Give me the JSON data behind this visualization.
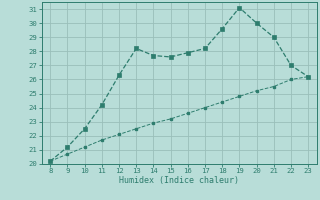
{
  "x": [
    8,
    9,
    10,
    11,
    12,
    13,
    14,
    15,
    16,
    17,
    18,
    19,
    20,
    21,
    22,
    23
  ],
  "y_curve": [
    20.2,
    21.2,
    22.5,
    24.2,
    26.3,
    28.2,
    27.7,
    27.6,
    27.9,
    28.2,
    29.6,
    31.1,
    30.0,
    29.0,
    27.0,
    26.2
  ],
  "y_line": [
    20.2,
    20.7,
    21.2,
    21.7,
    22.1,
    22.5,
    22.9,
    23.2,
    23.6,
    24.0,
    24.4,
    24.8,
    25.2,
    25.5,
    26.0,
    26.2
  ],
  "xlabel": "Humidex (Indice chaleur)",
  "xlim": [
    7.5,
    23.5
  ],
  "ylim": [
    20,
    31.5
  ],
  "yticks": [
    20,
    21,
    22,
    23,
    24,
    25,
    26,
    27,
    28,
    29,
    30,
    31
  ],
  "xticks": [
    8,
    9,
    10,
    11,
    12,
    13,
    14,
    15,
    16,
    17,
    18,
    19,
    20,
    21,
    22,
    23
  ],
  "line_color": "#2e7d6e",
  "bg_color": "#b8ddd8",
  "grid_color": "#9abfba"
}
